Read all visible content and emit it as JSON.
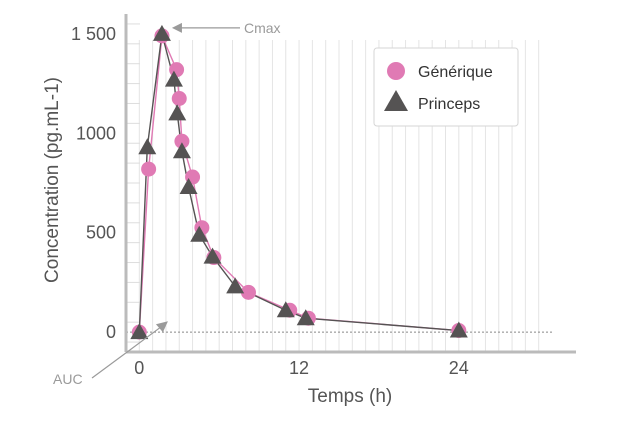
{
  "chart_data": {
    "type": "scatter",
    "xlabel": "Temps (h)",
    "ylabel": "Concentration (pg.mL-1)",
    "x_ticks": [
      0,
      12,
      24
    ],
    "y_ticks": [
      {
        "value": 0,
        "label": "0"
      },
      {
        "value": 500,
        "label": "500"
      },
      {
        "value": 1000,
        "label": "1000"
      },
      {
        "value": 1500,
        "label": "1 500"
      }
    ],
    "xlim": [
      -1,
      31
    ],
    "ylim": [
      -100,
      1600
    ],
    "legend_position": "top-right",
    "colors": {
      "generique": "#e07ab4",
      "princeps": "#555353"
    },
    "series": [
      {
        "name": "Générique",
        "marker": "circle",
        "color": "#e07ab4",
        "x": [
          0,
          0.7,
          1.7,
          2.8,
          3.0,
          3.2,
          4.0,
          4.7,
          5.6,
          8.2,
          11.3,
          12.7,
          24
        ],
        "y": [
          0,
          820,
          1490,
          1320,
          1175,
          960,
          780,
          525,
          375,
          200,
          110,
          70,
          8
        ]
      },
      {
        "name": "Princeps",
        "marker": "triangle",
        "color": "#555353",
        "x": [
          0,
          0.6,
          1.7,
          2.6,
          2.85,
          3.2,
          3.7,
          4.5,
          5.5,
          7.2,
          11.0,
          12.5,
          24
        ],
        "y": [
          0,
          930,
          1500,
          1270,
          1100,
          910,
          730,
          490,
          380,
          230,
          110,
          70,
          8
        ]
      }
    ],
    "annotations": [
      {
        "text": "Cmax",
        "x": 1.7,
        "y": 1500
      },
      {
        "text": "AUC",
        "x": 2,
        "y": 60
      }
    ]
  }
}
